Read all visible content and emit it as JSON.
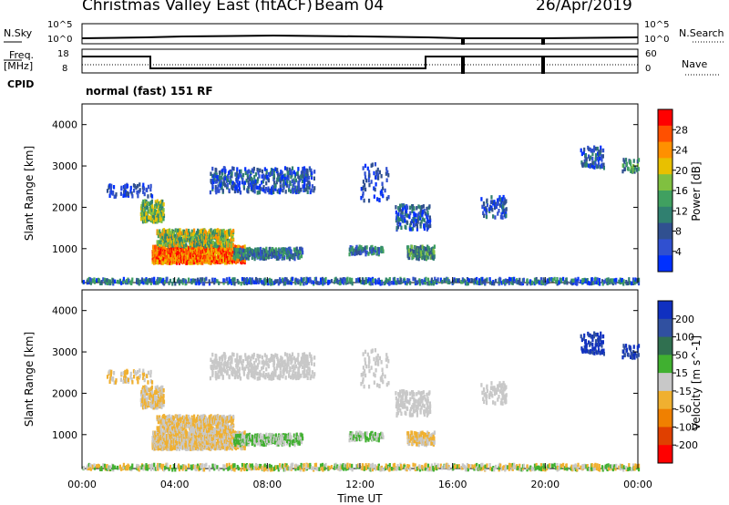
{
  "header": {
    "station": "Christmas Valley East (fitACF)",
    "beam": "Beam 04",
    "date": "26/Apr/2019"
  },
  "strips": {
    "nsky_label": "N.Sky",
    "nsky_ticks": [
      "10^5",
      "10^0"
    ],
    "nsearch_label": "N.Search",
    "freq_label_1": "Freq.",
    "freq_label_2": "[MHz]",
    "freq_ticks": [
      "18",
      "8"
    ],
    "nave_ticks": [
      "60",
      "0"
    ],
    "nave_label": "Nave",
    "cpid_label": "CPID",
    "cpid_text": "normal (fast) 151 RF"
  },
  "chart_data": [
    {
      "type": "heatmap",
      "name": "power",
      "ylabel": "Slant Range [km]",
      "yticks": [
        "4000",
        "3000",
        "2000",
        "1000"
      ],
      "colorbar_label": "Power [dB]",
      "colorbar_ticks": [
        "28",
        "24",
        "20",
        "16",
        "12",
        "8",
        "4"
      ],
      "colorbar_colors": [
        "#ff0000",
        "#ff5000",
        "#ff9000",
        "#e8c000",
        "#80c040",
        "#40a060",
        "#308070",
        "#305090",
        "#3050d0",
        "#0030ff"
      ],
      "ylim": [
        180,
        4500
      ],
      "xlim_hours": [
        0,
        24
      ]
    },
    {
      "type": "heatmap",
      "name": "velocity",
      "ylabel": "Slant Range [km]",
      "yticks": [
        "4000",
        "3000",
        "2000",
        "1000"
      ],
      "colorbar_label": "Velocity [m s^-1]",
      "colorbar_ticks": [
        "200",
        "100",
        "50",
        "15",
        "-15",
        "-50",
        "-100",
        "-200"
      ],
      "colorbar_colors": [
        "#1030c0",
        "#3050a0",
        "#307050",
        "#40b030",
        "#c8c8c8",
        "#f0b030",
        "#f08000",
        "#e04000",
        "#ff0000"
      ],
      "ylim": [
        180,
        4500
      ],
      "xlim_hours": [
        0,
        24
      ]
    }
  ],
  "xaxis": {
    "label": "Time UT",
    "ticks": [
      "00:00",
      "04:00",
      "08:00",
      "12:00",
      "16:00",
      "20:00",
      "00:00"
    ]
  }
}
